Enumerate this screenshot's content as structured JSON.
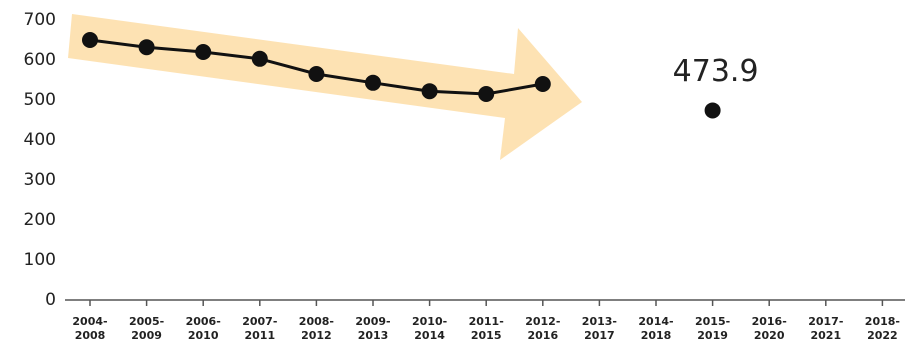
{
  "chart_data": {
    "type": "line",
    "categories": [
      "2004-2008",
      "2005-2009",
      "2006-2010",
      "2007-2011",
      "2008-2012",
      "2009-2013",
      "2010-2014",
      "2011-2015",
      "2012-2016",
      "2013-2017",
      "2014-2018",
      "2015-2019",
      "2016-2020",
      "2017-2021",
      "2018-2022"
    ],
    "series": [
      {
        "color": "#111111",
        "values": [
          650,
          632,
          620,
          603,
          565,
          543,
          522,
          515,
          540,
          null,
          null,
          473.9,
          null,
          null,
          null
        ]
      }
    ],
    "ylim": [
      0,
      700
    ],
    "yticks": [
      0,
      100,
      200,
      300,
      400,
      500,
      600,
      700
    ],
    "grid": false
  }
}
